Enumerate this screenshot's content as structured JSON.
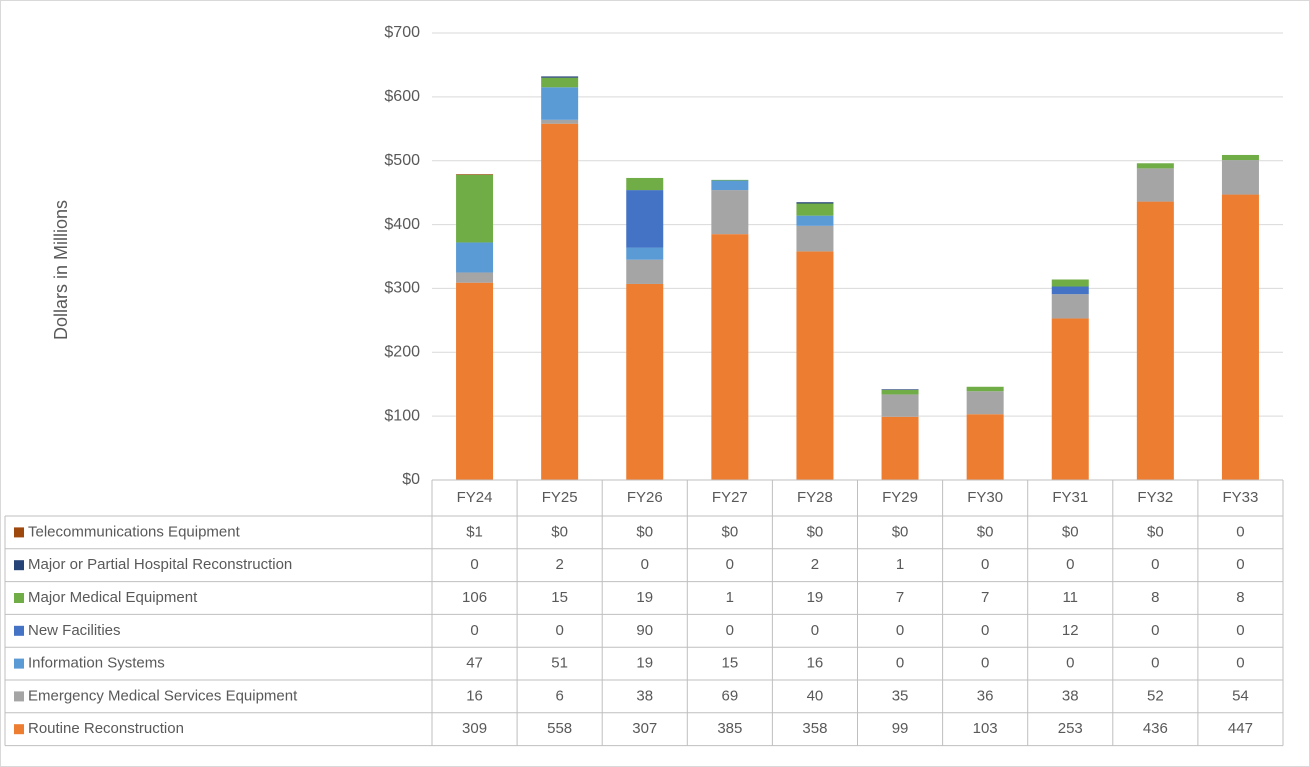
{
  "chart_data": {
    "type": "stacked_bar",
    "y_axis_label": "Dollars in Millions",
    "categories": [
      "FY24",
      "FY25",
      "FY26",
      "FY27",
      "FY28",
      "FY29",
      "FY30",
      "FY31",
      "FY32",
      "FY33"
    ],
    "series": [
      {
        "name": "Routine Reconstruction",
        "color": "#ed7d31",
        "values": [
          309,
          558,
          307,
          385,
          358,
          99,
          103,
          253,
          436,
          447
        ]
      },
      {
        "name": "Emergency Medical Services Equipment",
        "color": "#a5a5a5",
        "values": [
          16,
          6,
          38,
          69,
          40,
          35,
          36,
          38,
          52,
          54
        ]
      },
      {
        "name": "Information Systems",
        "color": "#5b9bd5",
        "values": [
          47,
          51,
          19,
          15,
          16,
          0,
          0,
          0,
          0,
          0
        ]
      },
      {
        "name": "New Facilities",
        "color": "#4472c4",
        "values": [
          0,
          0,
          90,
          0,
          0,
          0,
          0,
          12,
          0,
          0
        ]
      },
      {
        "name": "Major Medical Equipment",
        "color": "#70ad47",
        "values": [
          106,
          15,
          19,
          1,
          19,
          7,
          7,
          11,
          8,
          8
        ]
      },
      {
        "name": "Major or Partial Hospital Reconstruction",
        "color": "#264478",
        "values": [
          0,
          2,
          0,
          0,
          2,
          1,
          0,
          0,
          0,
          0
        ]
      },
      {
        "name": "Telecommunications Equipment",
        "color": "#9e480e",
        "values": [
          1,
          0,
          0,
          0,
          0,
          0,
          0,
          0,
          0,
          0
        ],
        "value_labels": [
          "$1",
          "$0",
          "$0",
          "$0",
          "$0",
          "$0",
          "$0",
          "$0",
          "$0",
          "0"
        ]
      }
    ],
    "ylim": [
      0,
      700
    ],
    "yticks": [
      {
        "value": 0,
        "label": "$0"
      },
      {
        "value": 100,
        "label": "$100"
      },
      {
        "value": 200,
        "label": "$200"
      },
      {
        "value": 300,
        "label": "$300"
      },
      {
        "value": 400,
        "label": "$400"
      },
      {
        "value": 500,
        "label": "$500"
      },
      {
        "value": 600,
        "label": "$600"
      },
      {
        "value": 700,
        "label": "$700"
      }
    ],
    "grid": true
  }
}
